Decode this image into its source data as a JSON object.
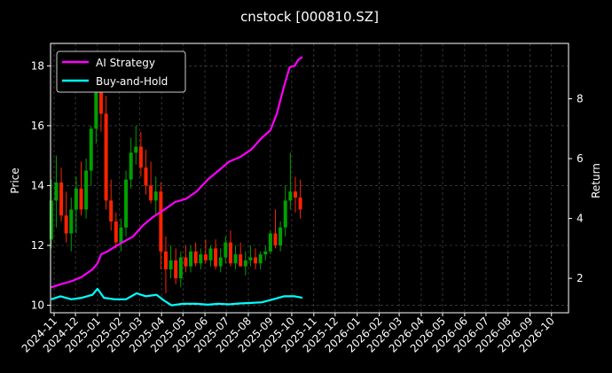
{
  "chart_data": {
    "type": "line",
    "title": "cnstock [000810.SZ]",
    "xlabel": "",
    "ylabel": "Price",
    "ylabel_right": "Return",
    "x_ticks": [
      "2024-11",
      "2024-12",
      "2025-01",
      "2025-02",
      "2025-03",
      "2025-04",
      "2025-05",
      "2025-06",
      "2025-07",
      "2025-08",
      "2025-09",
      "2025-10",
      "2025-11",
      "2025-12",
      "2026-01",
      "2026-02",
      "2026-03",
      "2026-04",
      "2026-05",
      "2026-06",
      "2026-07",
      "2026-08",
      "2026-09",
      "2026-10"
    ],
    "xlim": [
      "2024-10-27",
      "2026-10-25"
    ],
    "ylim": [
      9.75,
      18.75
    ],
    "ylim_right": [
      0.85,
      9.85
    ],
    "yticks": [
      10,
      12,
      14,
      16,
      18
    ],
    "yticks_right": [
      2,
      4,
      6,
      8
    ],
    "grid": true,
    "legend_position": "top-left",
    "colors": {
      "background": "#000000",
      "up_candle": "#00a000",
      "down_candle": "#ff2200",
      "ai_strategy": "#ff00ff",
      "buy_and_hold": "#00ffff",
      "grid": "#555555",
      "text": "#ffffff"
    },
    "candles": {
      "dates": [
        "2024-10-28",
        "2024-11-04",
        "2024-11-11",
        "2024-11-18",
        "2024-11-25",
        "2024-12-02",
        "2024-12-09",
        "2024-12-16",
        "2024-12-23",
        "2024-12-30",
        "2025-01-06",
        "2025-01-13",
        "2025-01-20",
        "2025-01-27",
        "2025-02-03",
        "2025-02-10",
        "2025-02-17",
        "2025-02-24",
        "2025-03-03",
        "2025-03-10",
        "2025-03-17",
        "2025-03-24",
        "2025-03-31",
        "2025-04-07",
        "2025-04-14",
        "2025-04-21",
        "2025-04-28",
        "2025-05-05",
        "2025-05-12",
        "2025-05-19",
        "2025-05-26",
        "2025-06-02",
        "2025-06-09",
        "2025-06-16",
        "2025-06-23",
        "2025-06-30",
        "2025-07-07",
        "2025-07-14",
        "2025-07-21",
        "2025-07-28",
        "2025-08-04",
        "2025-08-11",
        "2025-08-18",
        "2025-08-25",
        "2025-09-01",
        "2025-09-08",
        "2025-09-15",
        "2025-09-22",
        "2025-09-29",
        "2025-10-06",
        "2025-10-13"
      ],
      "open": [
        12.2,
        13.5,
        14.1,
        13.0,
        12.4,
        13.2,
        13.9,
        13.2,
        14.5,
        15.9,
        17.3,
        16.4,
        13.5,
        12.8,
        12.1,
        12.6,
        14.2,
        15.1,
        15.3,
        14.6,
        14.0,
        13.5,
        13.8,
        11.8,
        11.2,
        11.5,
        10.9,
        11.6,
        11.3,
        11.8,
        11.4,
        11.7,
        11.5,
        11.9,
        11.3,
        11.6,
        12.1,
        11.4,
        11.7,
        11.3,
        11.5,
        11.6,
        11.4,
        11.7,
        11.8,
        12.4,
        12.0,
        12.6,
        13.5,
        13.8,
        13.6
      ],
      "high": [
        14.2,
        15.0,
        14.6,
        13.8,
        13.6,
        14.3,
        14.8,
        14.9,
        16.0,
        17.6,
        18.1,
        17.0,
        14.2,
        13.1,
        12.9,
        14.5,
        15.6,
        16.0,
        15.8,
        15.2,
        14.8,
        14.3,
        14.1,
        12.3,
        12.0,
        11.9,
        11.8,
        12.0,
        12.0,
        12.1,
        11.9,
        12.2,
        12.0,
        12.2,
        11.9,
        12.3,
        12.5,
        12.0,
        12.1,
        11.8,
        12.0,
        11.9,
        11.8,
        12.0,
        12.5,
        13.2,
        12.8,
        14.0,
        15.1,
        14.3,
        14.2
      ],
      "low": [
        11.9,
        12.6,
        12.8,
        12.1,
        11.8,
        12.4,
        13.0,
        12.9,
        14.0,
        15.4,
        15.8,
        13.2,
        12.5,
        11.9,
        11.8,
        12.3,
        13.9,
        14.7,
        14.3,
        13.7,
        13.4,
        13.0,
        11.2,
        10.4,
        10.9,
        10.7,
        10.6,
        11.1,
        11.1,
        11.3,
        11.2,
        11.4,
        11.3,
        11.2,
        11.1,
        11.4,
        11.3,
        11.2,
        11.3,
        11.0,
        11.3,
        11.2,
        11.2,
        11.5,
        11.7,
        11.9,
        11.8,
        12.3,
        13.2,
        13.1,
        12.9
      ],
      "close": [
        13.5,
        14.1,
        13.0,
        12.4,
        13.2,
        13.9,
        13.2,
        14.5,
        15.9,
        17.3,
        16.4,
        13.5,
        12.8,
        12.1,
        12.6,
        14.2,
        15.1,
        15.3,
        14.6,
        14.0,
        13.5,
        13.8,
        11.8,
        11.2,
        11.5,
        10.9,
        11.6,
        11.3,
        11.8,
        11.4,
        11.7,
        11.5,
        11.9,
        11.3,
        11.6,
        12.1,
        11.4,
        11.7,
        11.3,
        11.5,
        11.6,
        11.4,
        11.7,
        11.8,
        12.4,
        12.0,
        12.6,
        13.5,
        13.8,
        13.6,
        13.2
      ]
    },
    "series": [
      {
        "name": "AI Strategy",
        "axis": "right",
        "points": [
          [
            "2024-10-28",
            1.7
          ],
          [
            "2024-11-10",
            1.8
          ],
          [
            "2024-11-25",
            1.9
          ],
          [
            "2024-12-10",
            2.05
          ],
          [
            "2024-12-25",
            2.3
          ],
          [
            "2025-01-01",
            2.5
          ],
          [
            "2025-01-06",
            2.8
          ],
          [
            "2025-01-15",
            2.9
          ],
          [
            "2025-01-25",
            3.05
          ],
          [
            "2025-02-05",
            3.2
          ],
          [
            "2025-02-20",
            3.4
          ],
          [
            "2025-03-05",
            3.75
          ],
          [
            "2025-03-20",
            4.05
          ],
          [
            "2025-04-05",
            4.3
          ],
          [
            "2025-04-20",
            4.55
          ],
          [
            "2025-05-05",
            4.65
          ],
          [
            "2025-05-20",
            4.9
          ],
          [
            "2025-06-05",
            5.3
          ],
          [
            "2025-06-20",
            5.6
          ],
          [
            "2025-07-05",
            5.9
          ],
          [
            "2025-07-20",
            6.05
          ],
          [
            "2025-08-05",
            6.3
          ],
          [
            "2025-08-20",
            6.7
          ],
          [
            "2025-09-01",
            6.95
          ],
          [
            "2025-09-10",
            7.5
          ],
          [
            "2025-09-20",
            8.4
          ],
          [
            "2025-09-28",
            9.05
          ],
          [
            "2025-10-05",
            9.1
          ],
          [
            "2025-10-10",
            9.3
          ],
          [
            "2025-10-16",
            9.4
          ]
        ]
      },
      {
        "name": "Buy-and-Hold",
        "axis": "right",
        "points": [
          [
            "2024-10-28",
            1.3
          ],
          [
            "2024-11-10",
            1.4
          ],
          [
            "2024-11-25",
            1.3
          ],
          [
            "2024-12-10",
            1.35
          ],
          [
            "2024-12-25",
            1.45
          ],
          [
            "2025-01-01",
            1.65
          ],
          [
            "2025-01-10",
            1.35
          ],
          [
            "2025-01-25",
            1.3
          ],
          [
            "2025-02-10",
            1.3
          ],
          [
            "2025-02-25",
            1.5
          ],
          [
            "2025-03-10",
            1.4
          ],
          [
            "2025-03-25",
            1.45
          ],
          [
            "2025-04-05",
            1.25
          ],
          [
            "2025-04-15",
            1.1
          ],
          [
            "2025-05-01",
            1.15
          ],
          [
            "2025-05-20",
            1.15
          ],
          [
            "2025-06-05",
            1.12
          ],
          [
            "2025-06-20",
            1.15
          ],
          [
            "2025-07-05",
            1.13
          ],
          [
            "2025-07-20",
            1.16
          ],
          [
            "2025-08-05",
            1.18
          ],
          [
            "2025-08-20",
            1.2
          ],
          [
            "2025-09-05",
            1.3
          ],
          [
            "2025-09-20",
            1.4
          ],
          [
            "2025-10-05",
            1.4
          ],
          [
            "2025-10-16",
            1.35
          ]
        ]
      }
    ]
  }
}
